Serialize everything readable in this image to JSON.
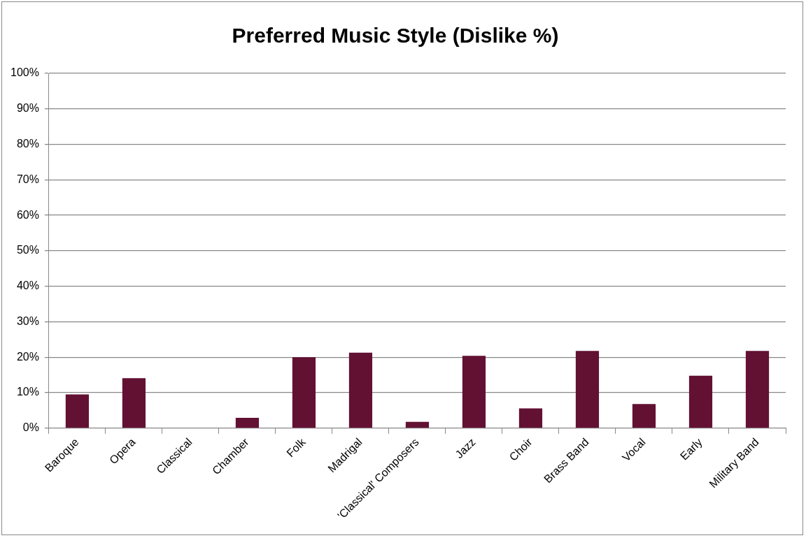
{
  "chart_data": {
    "type": "bar",
    "title": "Preferred Music Style (Dislike %)",
    "categories": [
      "Baroque",
      "Opera",
      "Classical",
      "Chamber",
      "Folk",
      "Madrigal",
      "'Classical' Composers",
      "Jazz",
      "Choir",
      "Brass Band",
      "Vocal",
      "Early",
      "Military Band"
    ],
    "values": [
      9.5,
      14.1,
      0,
      2.9,
      20,
      21.3,
      1.8,
      20.4,
      5.6,
      21.8,
      6.8,
      14.8,
      21.8
    ],
    "color": "#621133",
    "ylim": [
      0,
      100
    ],
    "yticks": [
      {
        "value": 0,
        "label": "0%"
      },
      {
        "value": 10,
        "label": "10%"
      },
      {
        "value": 20,
        "label": "20%"
      },
      {
        "value": 30,
        "label": "30%"
      },
      {
        "value": 40,
        "label": "40%"
      },
      {
        "value": 50,
        "label": "50%"
      },
      {
        "value": 60,
        "label": "60%"
      },
      {
        "value": 70,
        "label": "70%"
      },
      {
        "value": 80,
        "label": "80%"
      },
      {
        "value": 90,
        "label": "90%"
      },
      {
        "value": 100,
        "label": "100%"
      }
    ],
    "grid": "y",
    "legend": false
  }
}
